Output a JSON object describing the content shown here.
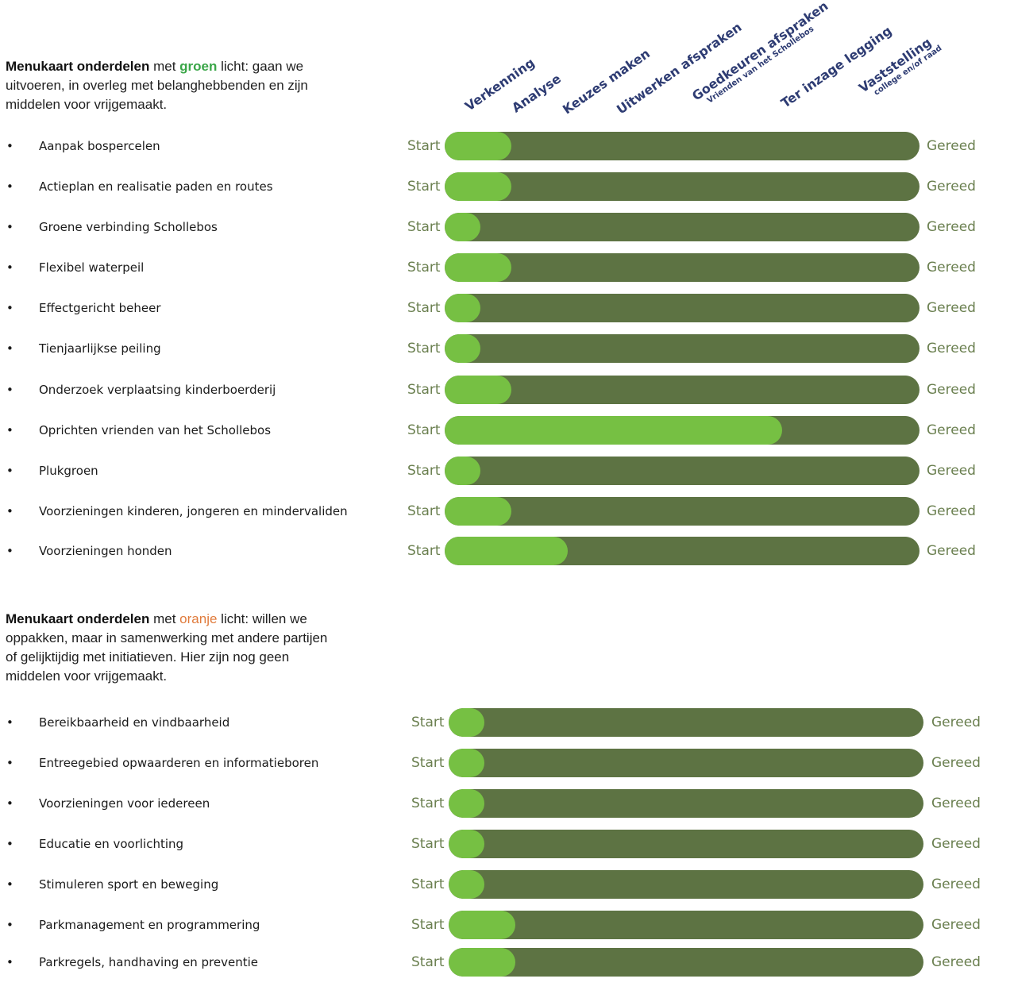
{
  "stages": [
    {
      "label": "Verkenning",
      "sub": ""
    },
    {
      "label": "Analyse",
      "sub": ""
    },
    {
      "label": "Keuzes maken",
      "sub": ""
    },
    {
      "label": "Uitwerken afspraken",
      "sub": ""
    },
    {
      "label": "Goedkeuren afspraken",
      "sub": "Vrienden van het Schollebos"
    },
    {
      "label": "Ter inzage legging",
      "sub": ""
    },
    {
      "label": "Vaststelling",
      "sub": "college en/of raad"
    }
  ],
  "section_green": {
    "title_bold": "Menukaart onderdelen",
    "title_pre": " met ",
    "highlight": "groen",
    "title_post": " licht: gaan we uitvoeren, in overleg met belanghebbenden en zijn middelen voor vrijgemaakt."
  },
  "section_orange": {
    "title_bold": "Menukaart onderdelen",
    "title_pre": " met ",
    "highlight": "oranje",
    "title_post": " licht: willen we oppakken, maar in samenwerking met andere partijen of gelijktijdig met initiatieven. Hier zijn nog geen middelen voor vrijgemaakt."
  },
  "bar_labels": {
    "start": "Start",
    "end": "Gereed"
  },
  "bullet": "•",
  "colors": {
    "track": "#5d7343",
    "fill": "#76c043",
    "stage_text": "#2e3c73",
    "green_word": "#3aa648",
    "orange_word": "#e07b3c",
    "bar_text": "#6a7f4f"
  },
  "chart_data": [
    {
      "type": "bar",
      "orientation": "horizontal",
      "categories": [
        "Aanpak bospercelen",
        "Actieplan en realisatie paden en routes",
        "Groene verbinding Schollebos",
        "Flexibel waterpeil",
        "Effectgericht beheer",
        "Tienjaarlijkse peiling",
        "Onderzoek verplaatsing kinderboerderij",
        "Oprichten vrienden van het Schollebos",
        "Plukgroen",
        "Voorzieningen kinderen, jongeren en mindervaliden",
        "Voorzieningen honden"
      ],
      "values": [
        0.14,
        0.14,
        0.075,
        0.14,
        0.075,
        0.075,
        0.14,
        0.71,
        0.075,
        0.14,
        0.26
      ],
      "xlim": [
        0,
        1
      ]
    },
    {
      "type": "bar",
      "orientation": "horizontal",
      "categories": [
        "Bereikbaarheid en vindbaarheid",
        "Entreegebied opwaarderen en informatieboren",
        "Voorzieningen voor iedereen",
        "Educatie en voorlichting",
        "Stimuleren sport en beweging",
        "Parkmanagement en programmering",
        "Parkregels, handhaving en preventie"
      ],
      "values": [
        0.075,
        0.075,
        0.075,
        0.075,
        0.075,
        0.14,
        0.14
      ],
      "xlim": [
        0,
        1
      ]
    }
  ]
}
